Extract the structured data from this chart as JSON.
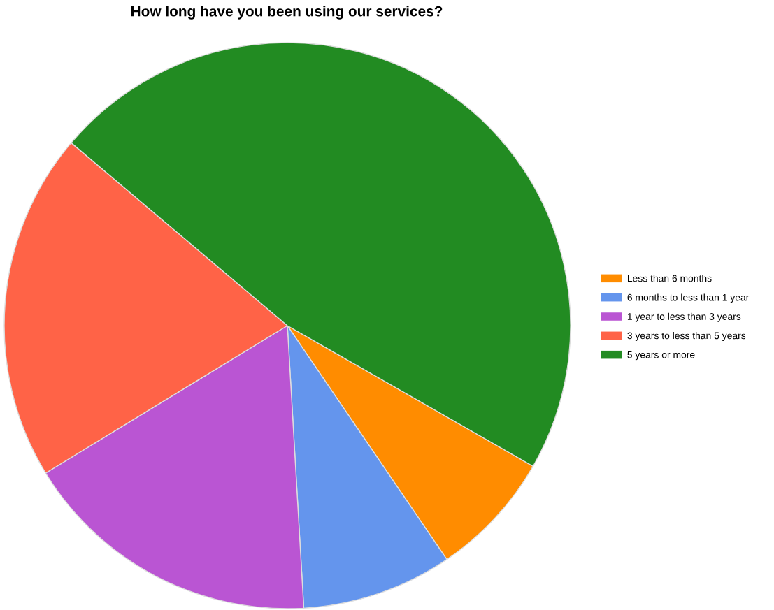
{
  "chart_data": {
    "type": "pie",
    "title": "How long have you been using our services?",
    "categories": [
      "Less than 6 months",
      "6 months to less than 1 year",
      "1 year to less than 3 years",
      "3 years to less than 5 years",
      "5 years or more"
    ],
    "values": [
      7.2,
      8.6,
      17.2,
      19.9,
      47.1
    ],
    "colors": [
      "#ff8c00",
      "#6495ed",
      "#ba55d3",
      "#ff6347",
      "#228b22"
    ],
    "legend": "right"
  }
}
